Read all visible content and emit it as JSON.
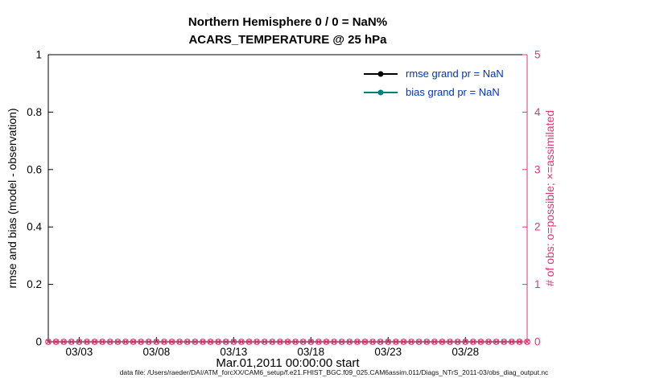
{
  "figure": {
    "title_line1": "Northern Hemisphere 0 / 0 = NaN%",
    "title_line2": "ACARS_TEMPERATURE @ 25 hPa",
    "footer": "data file: /Users/raeder/DAI/ATM_forcXX/CAM6_setup/f.e21.FHIST_BGC.f09_025.CAM6assim.011/Diags_NTrS_2011-03/obs_diag_output.nc"
  },
  "colors": {
    "obs_pink": "#e0356f",
    "bias_teal": "#00807a",
    "rmse_black": "#000000",
    "legend_text_blue": "#0033cc",
    "axis_black": "#000000"
  },
  "chart_data": {
    "type": "line",
    "title": "Northern Hemisphere 0 / 0 = NaN%",
    "subtitle": "ACARS_TEMPERATURE @ 25 hPa",
    "xlabel": "Mar.01,2011 00:00:00 start",
    "x_axis": {
      "tick_labels": [
        "03/03",
        "03/08",
        "03/13",
        "03/18",
        "03/23",
        "03/28"
      ],
      "tick_days": [
        2,
        7,
        12,
        17,
        22,
        27
      ],
      "range_days": [
        0,
        31
      ],
      "start_date": "Mar.01,2011 00:00:00"
    },
    "left_axis": {
      "label": "rmse and bias (model - observation)",
      "ticks": [
        0,
        0.2,
        0.4,
        0.6,
        0.8,
        1
      ],
      "tick_labels": [
        "0",
        "0.2",
        "0.4",
        "0.6",
        "0.8",
        "1"
      ],
      "range": [
        0,
        1
      ]
    },
    "right_axis": {
      "label": "# of obs: o=possible; ×=assimilated",
      "ticks": [
        0,
        1,
        2,
        3,
        4,
        5
      ],
      "tick_labels": [
        "0",
        "1",
        "2",
        "3",
        "4",
        "5"
      ],
      "range": [
        0,
        5
      ]
    },
    "series": [
      {
        "name": "rmse grand pr = NaN",
        "color": "#000000",
        "grand_value": "NaN",
        "values": []
      },
      {
        "name": "bias grand pr = NaN",
        "color": "#00807a",
        "grand_value": "NaN",
        "values": []
      }
    ],
    "observations": {
      "possible_total": 0,
      "assimilated_total": 0,
      "ratio_label": "0 / 0 = NaN%",
      "value_per_time": 0,
      "num_marker_times": 63,
      "marker_color": "#e0356f"
    }
  }
}
